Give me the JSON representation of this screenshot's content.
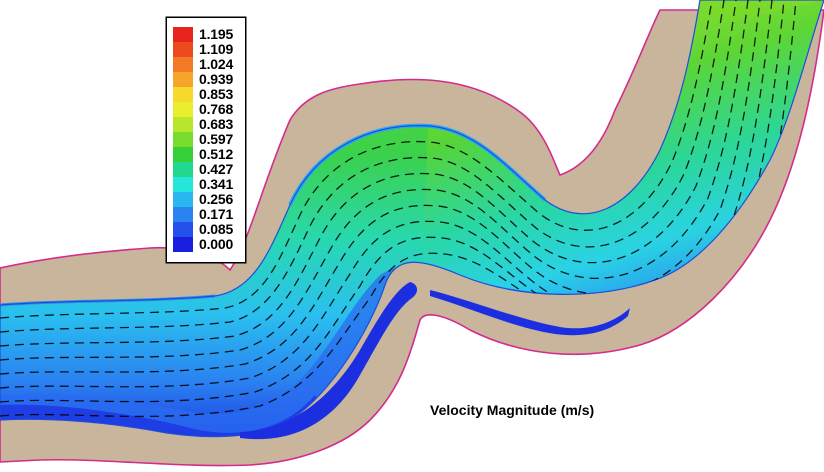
{
  "legend": {
    "levels": [
      "1.195",
      "1.109",
      "1.024",
      "0.939",
      "0.853",
      "0.768",
      "0.683",
      "0.597",
      "0.512",
      "0.427",
      "0.341",
      "0.256",
      "0.171",
      "0.085",
      "0.000"
    ],
    "colors": [
      "#e8221c",
      "#ee4a20",
      "#f27a24",
      "#f5a62a",
      "#f6d92c",
      "#e9ef2c",
      "#b8e62c",
      "#78dc2c",
      "#36cf3a",
      "#22d78e",
      "#26e6dc",
      "#2ab6f1",
      "#2a84f0",
      "#2650ea",
      "#1a1ee0"
    ]
  },
  "caption": "Velocity Magnitude (m/s)",
  "colors": {
    "bank": "#c8b59c",
    "bank_outline": "#d42c8c",
    "channel_outline": "#1b4fd8",
    "vector": "#000000"
  }
}
